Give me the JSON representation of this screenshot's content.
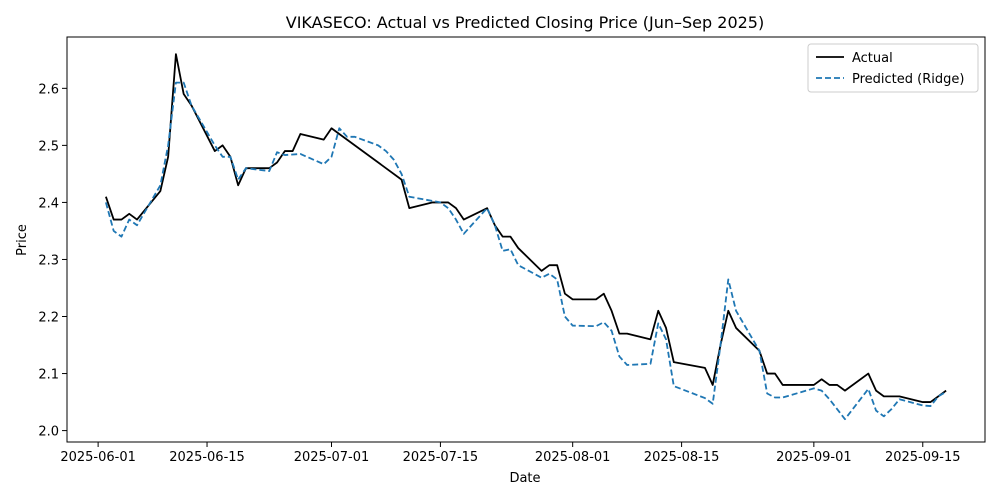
{
  "chart_data": {
    "type": "line",
    "title": "VIKASECO: Actual vs Predicted Closing Price (Jun–Sep 2025)",
    "xlabel": "Date",
    "ylabel": "Price",
    "xlim": [
      "2025-05-28",
      "2025-09-23"
    ],
    "ylim": [
      1.98,
      2.69
    ],
    "grid": false,
    "legend_position": "top-right",
    "x_ticks": [
      "2025-06-01",
      "2025-06-15",
      "2025-07-01",
      "2025-07-15",
      "2025-08-01",
      "2025-08-15",
      "2025-09-01",
      "2025-09-15"
    ],
    "y_ticks": [
      2.0,
      2.1,
      2.2,
      2.3,
      2.4,
      2.5,
      2.6
    ],
    "y_tick_labels": [
      "2.0",
      "2.1",
      "2.2",
      "2.3",
      "2.4",
      "2.5",
      "2.6"
    ],
    "series": [
      {
        "name": "Actual",
        "color": "#000000",
        "style": "solid",
        "points": [
          [
            "2025-06-02",
            2.41
          ],
          [
            "2025-06-03",
            2.37
          ],
          [
            "2025-06-04",
            2.37
          ],
          [
            "2025-06-05",
            2.38
          ],
          [
            "2025-06-06",
            2.37
          ],
          [
            "2025-06-09",
            2.42
          ],
          [
            "2025-06-10",
            2.48
          ],
          [
            "2025-06-11",
            2.66
          ],
          [
            "2025-06-12",
            2.59
          ],
          [
            "2025-06-13",
            2.57
          ],
          [
            "2025-06-16",
            2.49
          ],
          [
            "2025-06-17",
            2.5
          ],
          [
            "2025-06-18",
            2.48
          ],
          [
            "2025-06-19",
            2.43
          ],
          [
            "2025-06-20",
            2.46
          ],
          [
            "2025-06-23",
            2.46
          ],
          [
            "2025-06-24",
            2.47
          ],
          [
            "2025-06-25",
            2.49
          ],
          [
            "2025-06-26",
            2.49
          ],
          [
            "2025-06-27",
            2.52
          ],
          [
            "2025-06-30",
            2.51
          ],
          [
            "2025-07-01",
            2.53
          ],
          [
            "2025-07-02",
            2.52
          ],
          [
            "2025-07-10",
            2.44
          ],
          [
            "2025-07-11",
            2.39
          ],
          [
            "2025-07-14",
            2.4
          ],
          [
            "2025-07-16",
            2.4
          ],
          [
            "2025-07-17",
            2.39
          ],
          [
            "2025-07-18",
            2.37
          ],
          [
            "2025-07-21",
            2.39
          ],
          [
            "2025-07-22",
            2.36
          ],
          [
            "2025-07-23",
            2.34
          ],
          [
            "2025-07-24",
            2.34
          ],
          [
            "2025-07-25",
            2.32
          ],
          [
            "2025-07-28",
            2.28
          ],
          [
            "2025-07-29",
            2.29
          ],
          [
            "2025-07-30",
            2.29
          ],
          [
            "2025-07-31",
            2.24
          ],
          [
            "2025-08-01",
            2.23
          ],
          [
            "2025-08-04",
            2.23
          ],
          [
            "2025-08-05",
            2.24
          ],
          [
            "2025-08-06",
            2.21
          ],
          [
            "2025-08-07",
            2.17
          ],
          [
            "2025-08-08",
            2.17
          ],
          [
            "2025-08-11",
            2.16
          ],
          [
            "2025-08-12",
            2.21
          ],
          [
            "2025-08-13",
            2.18
          ],
          [
            "2025-08-14",
            2.12
          ],
          [
            "2025-08-18",
            2.11
          ],
          [
            "2025-08-19",
            2.08
          ],
          [
            "2025-08-20",
            2.15
          ],
          [
            "2025-08-21",
            2.21
          ],
          [
            "2025-08-22",
            2.18
          ],
          [
            "2025-08-25",
            2.14
          ],
          [
            "2025-08-26",
            2.1
          ],
          [
            "2025-08-27",
            2.1
          ],
          [
            "2025-08-28",
            2.08
          ],
          [
            "2025-09-01",
            2.08
          ],
          [
            "2025-09-02",
            2.09
          ],
          [
            "2025-09-03",
            2.08
          ],
          [
            "2025-09-04",
            2.08
          ],
          [
            "2025-09-05",
            2.07
          ],
          [
            "2025-09-08",
            2.1
          ],
          [
            "2025-09-09",
            2.07
          ],
          [
            "2025-09-10",
            2.06
          ],
          [
            "2025-09-12",
            2.06
          ],
          [
            "2025-09-15",
            2.05
          ],
          [
            "2025-09-16",
            2.05
          ],
          [
            "2025-09-18",
            2.07
          ]
        ]
      },
      {
        "name": "Predicted (Ridge)",
        "color": "#1f77b4",
        "style": "dashed",
        "points": [
          [
            "2025-06-02",
            2.4
          ],
          [
            "2025-06-03",
            2.35
          ],
          [
            "2025-06-04",
            2.34
          ],
          [
            "2025-06-05",
            2.37
          ],
          [
            "2025-06-06",
            2.36
          ],
          [
            "2025-06-09",
            2.43
          ],
          [
            "2025-06-10",
            2.5
          ],
          [
            "2025-06-11",
            2.61
          ],
          [
            "2025-06-12",
            2.61
          ],
          [
            "2025-06-13",
            2.57
          ],
          [
            "2025-06-16",
            2.5
          ],
          [
            "2025-06-17",
            2.48
          ],
          [
            "2025-06-18",
            2.48
          ],
          [
            "2025-06-19",
            2.44
          ],
          [
            "2025-06-20",
            2.46
          ],
          [
            "2025-06-23",
            2.455
          ],
          [
            "2025-06-24",
            2.488
          ],
          [
            "2025-06-25",
            2.483
          ],
          [
            "2025-06-27",
            2.485
          ],
          [
            "2025-06-30",
            2.467
          ],
          [
            "2025-07-01",
            2.48
          ],
          [
            "2025-07-02",
            2.53
          ],
          [
            "2025-07-03",
            2.515
          ],
          [
            "2025-07-04",
            2.515
          ],
          [
            "2025-07-07",
            2.5
          ],
          [
            "2025-07-08",
            2.49
          ],
          [
            "2025-07-09",
            2.475
          ],
          [
            "2025-07-10",
            2.45
          ],
          [
            "2025-07-11",
            2.41
          ],
          [
            "2025-07-15",
            2.4
          ],
          [
            "2025-07-16",
            2.39
          ],
          [
            "2025-07-17",
            2.37
          ],
          [
            "2025-07-18",
            2.345
          ],
          [
            "2025-07-21",
            2.39
          ],
          [
            "2025-07-22",
            2.36
          ],
          [
            "2025-07-23",
            2.315
          ],
          [
            "2025-07-24",
            2.318
          ],
          [
            "2025-07-25",
            2.29
          ],
          [
            "2025-07-28",
            2.268
          ],
          [
            "2025-07-29",
            2.275
          ],
          [
            "2025-07-30",
            2.265
          ],
          [
            "2025-07-31",
            2.2
          ],
          [
            "2025-08-01",
            2.184
          ],
          [
            "2025-08-04",
            2.183
          ],
          [
            "2025-08-05",
            2.19
          ],
          [
            "2025-08-06",
            2.175
          ],
          [
            "2025-08-07",
            2.13
          ],
          [
            "2025-08-08",
            2.115
          ],
          [
            "2025-08-11",
            2.117
          ],
          [
            "2025-08-12",
            2.188
          ],
          [
            "2025-08-13",
            2.16
          ],
          [
            "2025-08-14",
            2.078
          ],
          [
            "2025-08-18",
            2.057
          ],
          [
            "2025-08-19",
            2.047
          ],
          [
            "2025-08-20",
            2.15
          ],
          [
            "2025-08-21",
            2.265
          ],
          [
            "2025-08-22",
            2.21
          ],
          [
            "2025-08-25",
            2.14
          ],
          [
            "2025-08-26",
            2.065
          ],
          [
            "2025-08-27",
            2.058
          ],
          [
            "2025-08-28",
            2.058
          ],
          [
            "2025-09-01",
            2.074
          ],
          [
            "2025-09-02",
            2.07
          ],
          [
            "2025-09-03",
            2.055
          ],
          [
            "2025-09-05",
            2.02
          ],
          [
            "2025-09-08",
            2.073
          ],
          [
            "2025-09-09",
            2.035
          ],
          [
            "2025-09-10",
            2.025
          ],
          [
            "2025-09-11",
            2.038
          ],
          [
            "2025-09-12",
            2.055
          ],
          [
            "2025-09-15",
            2.044
          ],
          [
            "2025-09-16",
            2.043
          ],
          [
            "2025-09-17",
            2.06
          ],
          [
            "2025-09-18",
            2.068
          ]
        ]
      }
    ]
  }
}
